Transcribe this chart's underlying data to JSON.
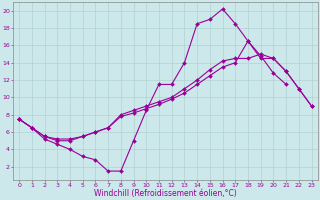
{
  "xlabel": "Windchill (Refroidissement éolien,°C)",
  "bg_color": "#cce8ea",
  "line_color": "#990099",
  "grid_color": "#aacccc",
  "xlim_min": -0.5,
  "xlim_max": 23.5,
  "ylim_min": 0.5,
  "ylim_max": 21,
  "xticks": [
    0,
    1,
    2,
    3,
    4,
    5,
    6,
    7,
    8,
    9,
    10,
    11,
    12,
    13,
    14,
    15,
    16,
    17,
    18,
    19,
    20,
    21,
    22,
    23
  ],
  "yticks": [
    2,
    4,
    6,
    8,
    10,
    12,
    14,
    16,
    18,
    20
  ],
  "line1_x": [
    0,
    1,
    2,
    3,
    4,
    5,
    6,
    7,
    8,
    9,
    10,
    11,
    12,
    13,
    14,
    15,
    16,
    17,
    18,
    19,
    20,
    21
  ],
  "line1_y": [
    7.5,
    6.5,
    5.2,
    4.6,
    4.0,
    3.2,
    2.8,
    1.5,
    1.5,
    5.0,
    8.5,
    11.5,
    11.5,
    14.0,
    18.5,
    19.0,
    20.2,
    18.5,
    16.5,
    14.8,
    12.8,
    11.5
  ],
  "line2_x": [
    0,
    1,
    2,
    3,
    4,
    5,
    6,
    7,
    8,
    9,
    10,
    11,
    12,
    13,
    14,
    15,
    16,
    17,
    18,
    19,
    20,
    21,
    22,
    23
  ],
  "line2_y": [
    7.5,
    6.5,
    5.5,
    5.0,
    5.0,
    5.5,
    6.0,
    6.5,
    8.0,
    8.5,
    9.0,
    9.5,
    10.0,
    11.0,
    12.0,
    13.2,
    14.2,
    14.5,
    14.5,
    15.0,
    14.5,
    13.0,
    11.0,
    9.0
  ],
  "line3_x": [
    0,
    1,
    2,
    3,
    4,
    5,
    6,
    7,
    8,
    9,
    10,
    11,
    12,
    13,
    14,
    15,
    16,
    17,
    18,
    19,
    20,
    21,
    22,
    23
  ],
  "line3_y": [
    7.5,
    6.5,
    5.5,
    5.2,
    5.2,
    5.5,
    6.0,
    6.5,
    7.8,
    8.2,
    8.7,
    9.2,
    9.8,
    10.5,
    11.5,
    12.5,
    13.5,
    14.0,
    16.5,
    14.5,
    14.5,
    13.0,
    11.0,
    9.0
  ],
  "xlabel_fontsize": 5.5,
  "tick_fontsize": 4.5,
  "linewidth": 0.8,
  "markersize": 2.0
}
